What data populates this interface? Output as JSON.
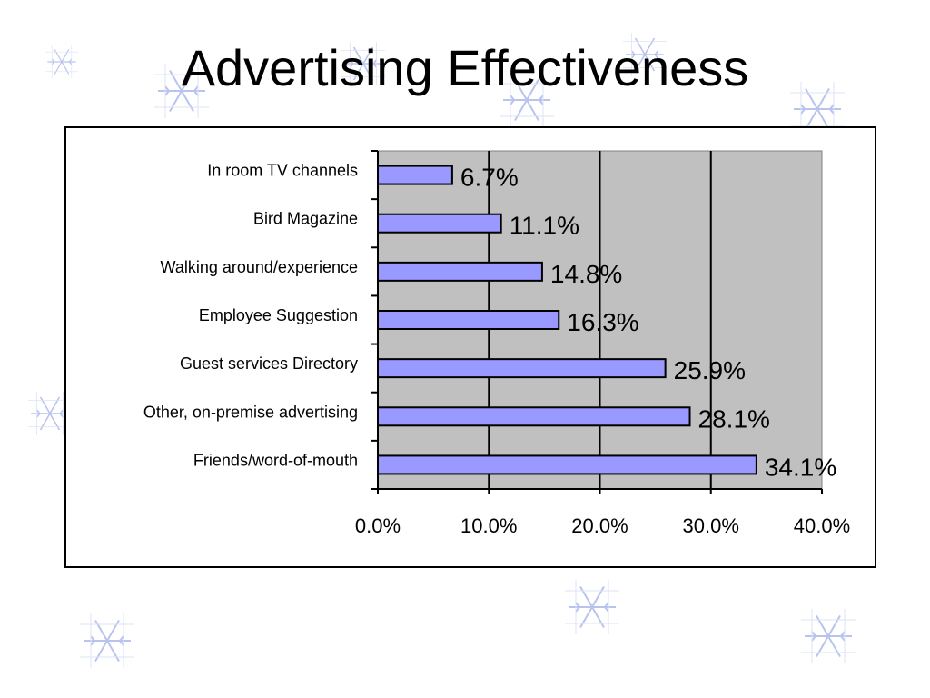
{
  "slide": {
    "title": "Advertising Effectiveness"
  },
  "colors": {
    "bar_fill": "#9999ff",
    "bar_stroke": "#000000",
    "plot_bg": "#c0c0c0",
    "snowflake": "#b8c4ee"
  },
  "icons": [
    "snowflake-icon"
  ],
  "chart_data": {
    "type": "bar",
    "orientation": "horizontal",
    "categories": [
      "In room TV channels",
      "Bird Magazine",
      "Walking around/experience",
      "Employee Suggestion",
      "Guest services Directory",
      "Other, on-premise advertising",
      "Friends/word-of-mouth"
    ],
    "values": [
      6.7,
      11.1,
      14.8,
      16.3,
      25.9,
      28.1,
      34.1
    ],
    "value_labels": [
      "6.7%",
      "11.1%",
      "14.8%",
      "16.3%",
      "25.9%",
      "28.1%",
      "34.1%"
    ],
    "xlim": [
      0,
      40
    ],
    "xticks": [
      0,
      10,
      20,
      30,
      40
    ],
    "xtick_labels": [
      "0.0%",
      "10.0%",
      "20.0%",
      "30.0%",
      "40.0%"
    ],
    "grid": "vertical",
    "legend": "none",
    "title": "",
    "xlabel": "",
    "ylabel": ""
  }
}
